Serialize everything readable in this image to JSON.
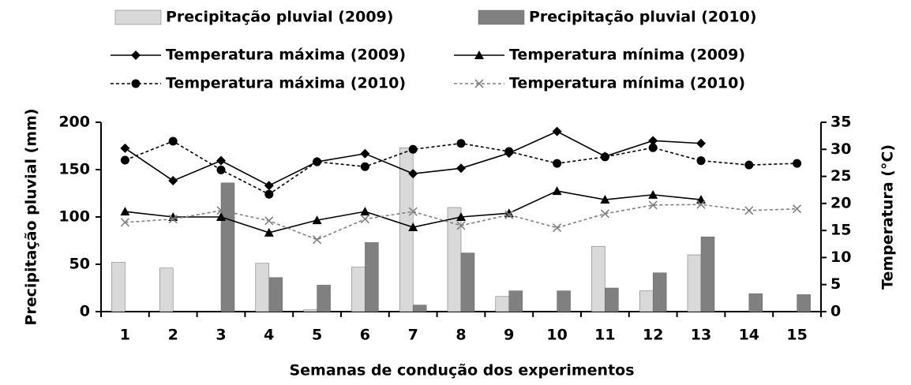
{
  "chart_data": {
    "type": "bar",
    "x_label": "Semanas de condução dos experimentos",
    "y_label": "Precipitação pluvial (mm)",
    "y2_label": "Temperatura (°C)",
    "categories": [
      "1",
      "2",
      "3",
      "4",
      "5",
      "6",
      "7",
      "8",
      "9",
      "10",
      "11",
      "12",
      "13",
      "14",
      "15"
    ],
    "ylim": [
      0,
      200
    ],
    "yticks": [
      0,
      50,
      100,
      150,
      200
    ],
    "y2lim": [
      0,
      35
    ],
    "y2ticks": [
      0,
      5,
      10,
      15,
      20,
      25,
      30,
      35
    ],
    "grid": false,
    "series": [
      {
        "name": "Precipitação pluvial (2009)",
        "type": "bar",
        "color": "#d9d9d9",
        "values": [
          52,
          46,
          null,
          51,
          2,
          47,
          173,
          110,
          16,
          null,
          69,
          22,
          60,
          null,
          null
        ]
      },
      {
        "name": "Precipitação pluvial (2010)",
        "type": "bar",
        "color": "#808080",
        "values": [
          null,
          null,
          136,
          36,
          28,
          73,
          7,
          62,
          22,
          22,
          25,
          41,
          79,
          19,
          18
        ]
      },
      {
        "name": "Temperatura máxima (2009)",
        "type": "line",
        "axis": "y2",
        "color": "#000000",
        "dashed": false,
        "marker": "diamond",
        "values": [
          30.2,
          24.2,
          27.9,
          23.3,
          27.7,
          29.2,
          25.5,
          26.5,
          29.3,
          33.3,
          28.7,
          31.6,
          31.1,
          null,
          null
        ]
      },
      {
        "name": "Temperatura mínima (2009)",
        "type": "line",
        "axis": "y2",
        "color": "#000000",
        "dashed": false,
        "marker": "triangle",
        "values": [
          18.5,
          17.5,
          17.5,
          14.6,
          16.9,
          18.5,
          15.6,
          17.5,
          18.2,
          22.3,
          20.7,
          21.6,
          20.7,
          null,
          null
        ]
      },
      {
        "name": "Temperatura máxima (2010)",
        "type": "line",
        "axis": "y2",
        "color": "#000000",
        "dashed": true,
        "marker": "circle",
        "values": [
          28,
          31.5,
          26.2,
          21.7,
          27.7,
          26.8,
          30,
          31.1,
          29.6,
          27.4,
          28.6,
          30.3,
          27.9,
          27.1,
          27.4
        ]
      },
      {
        "name": "Temperatura mínima (2010)",
        "type": "line",
        "axis": "y2",
        "color": "#808080",
        "dashed": true,
        "marker": "x",
        "values": [
          16.5,
          17.1,
          18.7,
          16.8,
          13.3,
          17.1,
          18.5,
          15.9,
          17.9,
          15.5,
          18.1,
          19.7,
          19.8,
          18.7,
          19
        ]
      }
    ]
  }
}
